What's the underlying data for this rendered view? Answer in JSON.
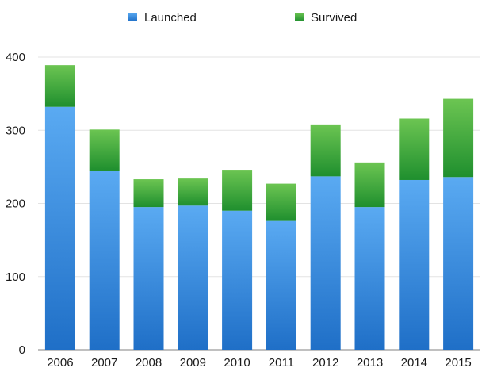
{
  "chart_data": {
    "type": "bar",
    "stacked": true,
    "categories": [
      "2006",
      "2007",
      "2008",
      "2009",
      "2010",
      "2011",
      "2012",
      "2013",
      "2014",
      "2015"
    ],
    "series": [
      {
        "name": "Launched",
        "values": [
          332,
          245,
          195,
          197,
          190,
          176,
          237,
          195,
          232,
          236
        ],
        "color": "#3a8ee0"
      },
      {
        "name": "Survived",
        "values": [
          57,
          56,
          38,
          37,
          56,
          51,
          71,
          61,
          84,
          107
        ],
        "color": "#2fa03a"
      }
    ],
    "ylim": [
      0,
      400
    ],
    "yticks": [
      0,
      100,
      200,
      300,
      400
    ],
    "grid": true,
    "legend": "top-center"
  }
}
